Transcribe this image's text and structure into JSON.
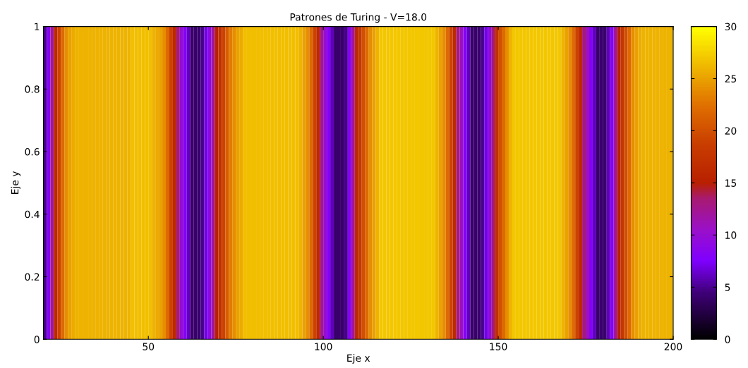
{
  "chart_data": {
    "type": "heatmap",
    "title": "Patrones de Turing - V=18.0",
    "xlabel": "Eje x",
    "ylabel": "Eje y",
    "x": [
      20.5,
      21.5,
      22.5,
      23.5,
      24.5,
      25.5,
      26.5,
      27.5,
      28.5,
      29.5,
      30.5,
      31.5,
      32.5,
      33.5,
      34.5,
      35.5,
      36.5,
      37.5,
      38.5,
      39.5,
      40.5,
      41.5,
      42.5,
      43.5,
      44.5,
      45.5,
      46.5,
      47.5,
      48.5,
      49.5,
      50.5,
      51.5,
      52.5,
      53.5,
      54.5,
      55.5,
      56.5,
      57.5,
      58.5,
      59.5,
      60.5,
      61.5,
      62.5,
      63.5,
      64.5,
      65.5,
      66.5,
      67.5,
      68.5,
      69.5,
      70.5,
      71.5,
      72.5,
      73.5,
      74.5,
      75.5,
      76.5,
      77.5,
      78.5,
      79.5,
      80.5,
      81.5,
      82.5,
      83.5,
      84.5,
      85.5,
      86.5,
      87.5,
      88.5,
      89.5,
      90.5,
      91.5,
      92.5,
      93.5,
      94.5,
      95.5,
      96.5,
      97.5,
      98.5,
      99.5,
      100.5,
      101.5,
      102.5,
      103.5,
      104.5,
      105.5,
      106.5,
      107.5,
      108.5,
      109.5,
      110.5,
      111.5,
      112.5,
      113.5,
      114.5,
      115.5,
      116.5,
      117.5,
      118.5,
      119.5,
      120.5,
      121.5,
      122.5,
      123.5,
      124.5,
      125.5,
      126.5,
      127.5,
      128.5,
      129.5,
      130.5,
      131.5,
      132.5,
      133.5,
      134.5,
      135.5,
      136.5,
      137.5,
      138.5,
      139.5,
      140.5,
      141.5,
      142.5,
      143.5,
      144.5,
      145.5,
      146.5,
      147.5,
      148.5,
      149.5,
      150.5,
      151.5,
      152.5,
      153.5,
      154.5,
      155.5,
      156.5,
      157.5,
      158.5,
      159.5,
      160.5,
      161.5,
      162.5,
      163.5,
      164.5,
      165.5,
      166.5,
      167.5,
      168.5,
      169.5,
      170.5,
      171.5,
      172.5,
      173.5,
      174.5,
      175.5,
      176.5,
      177.5,
      178.5,
      179.5,
      180.5,
      181.5,
      182.5,
      183.5,
      184.5,
      185.5,
      186.5,
      187.5,
      188.5,
      189.5,
      190.5,
      191.5,
      192.5,
      193.5,
      194.5,
      195.5,
      196.5,
      197.5,
      198.5,
      199.5
    ],
    "cells": [
      [
        5,
        8,
        12,
        16,
        19,
        22,
        24,
        25,
        25.5,
        26,
        26,
        26,
        26,
        26,
        26,
        26,
        26,
        26,
        26,
        26,
        26,
        26,
        26,
        26,
        26,
        26.5,
        26.5,
        26.5,
        26.5,
        26.5,
        26.5,
        26,
        25.5,
        25,
        24,
        22,
        19,
        16,
        13,
        10,
        8,
        6,
        4,
        4,
        4,
        5,
        7,
        9,
        12,
        15,
        17,
        19,
        21,
        23,
        24,
        25,
        25.5,
        26.5,
        26.5,
        26.5,
        26.5,
        26.5,
        26.5,
        26.5,
        26.5,
        26.5,
        26.5,
        26.5,
        26.5,
        26.5,
        26.5,
        26.5,
        26.5,
        26,
        25,
        24,
        22,
        19,
        16,
        13,
        10,
        8,
        6,
        4,
        4,
        4,
        5,
        8,
        12,
        16,
        18,
        20,
        22,
        24,
        25,
        26,
        27,
        27,
        27,
        27,
        27,
        27,
        27,
        27,
        27,
        27,
        27,
        27,
        27,
        27,
        27,
        27,
        26,
        25,
        24,
        22,
        19,
        16,
        13,
        11,
        8,
        6,
        4,
        4,
        4,
        5,
        7,
        9,
        13,
        17,
        20,
        22,
        24,
        26,
        27,
        27,
        27,
        27,
        27,
        27,
        27,
        27,
        27,
        27,
        27,
        27,
        27,
        27,
        26,
        25,
        24,
        22,
        19,
        16,
        13,
        11,
        8,
        6,
        4,
        4,
        4,
        6,
        8,
        12,
        15,
        18,
        20,
        22,
        24,
        25,
        25.5,
        26,
        26,
        26,
        26,
        26,
        26,
        26,
        26,
        26
      ]
    ],
    "xlim": [
      20,
      200
    ],
    "xticks": [
      50,
      100,
      150,
      200
    ],
    "ylim": [
      0,
      1
    ],
    "yticks": [
      0,
      0.2,
      0.4,
      0.6,
      0.8,
      1
    ],
    "clim": [
      0,
      30
    ],
    "cticks": [
      0,
      5,
      10,
      15,
      20,
      25,
      30
    ],
    "grid": false
  }
}
